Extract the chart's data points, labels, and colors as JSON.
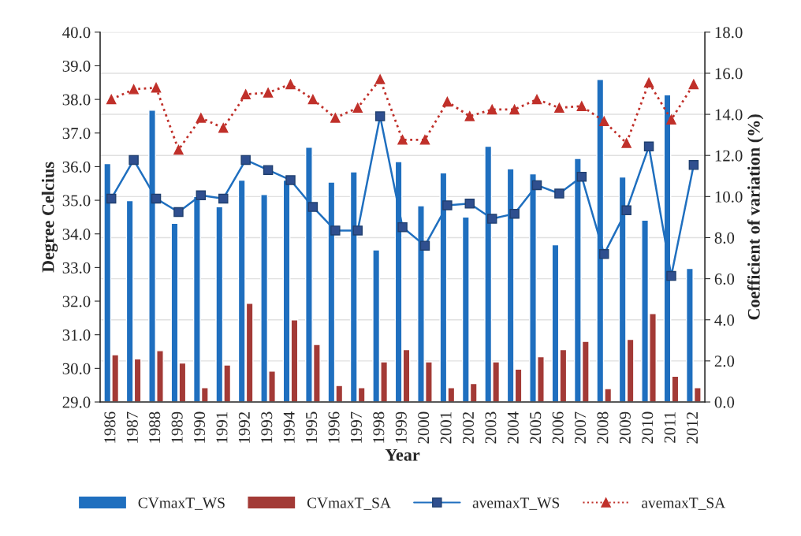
{
  "chart_data": {
    "type": "bar",
    "xlabel": "Year",
    "ylabel": "Degree Celcius",
    "y2label": "Coefficient of variation (%)",
    "categories": [
      "1986",
      "1987",
      "1988",
      "1989",
      "1990",
      "1991",
      "1992",
      "1993",
      "1994",
      "1995",
      "1996",
      "1997",
      "1998",
      "1999",
      "2000",
      "2001",
      "2002",
      "2003",
      "2004",
      "2005",
      "2006",
      "2007",
      "2008",
      "2009",
      "2010",
      "2011",
      "2012"
    ],
    "series": [
      {
        "name": "CVmaxT_WS",
        "axis": "y2",
        "color": "#1f6fbf",
        "values": [
          11.6,
          9.8,
          14.2,
          8.7,
          10.0,
          9.5,
          10.8,
          10.1,
          10.8,
          12.4,
          10.7,
          11.2,
          7.4,
          11.7,
          9.55,
          11.15,
          9.0,
          12.45,
          11.35,
          11.1,
          7.65,
          11.85,
          15.7,
          10.95,
          8.85,
          14.95,
          6.5
        ]
      },
      {
        "name": "CVmaxT_SA",
        "axis": "y2",
        "color": "#a33a36",
        "values": [
          2.3,
          2.1,
          2.5,
          1.9,
          0.7,
          1.8,
          4.8,
          1.5,
          4.0,
          2.8,
          0.8,
          0.7,
          1.95,
          2.55,
          1.95,
          0.7,
          0.9,
          1.95,
          1.6,
          2.2,
          2.55,
          2.95,
          0.65,
          3.05,
          4.3,
          1.25,
          0.7
        ]
      },
      {
        "name": "avemaxT_WS",
        "type": "line",
        "color": "#1f6fbf",
        "marker": "square",
        "line_style": "solid",
        "values": [
          35.05,
          36.2,
          35.05,
          34.65,
          35.15,
          35.05,
          36.2,
          35.9,
          35.6,
          34.8,
          34.1,
          34.1,
          37.5,
          34.2,
          33.65,
          34.85,
          34.9,
          34.45,
          34.6,
          35.45,
          35.2,
          35.7,
          33.4,
          34.7,
          36.6,
          32.75,
          36.05
        ]
      },
      {
        "name": "avemaxT_SA",
        "type": "line",
        "color": "#c0302a",
        "marker": "triangle",
        "line_style": "dotted",
        "values": [
          38.0,
          38.3,
          38.35,
          36.5,
          37.45,
          37.15,
          38.15,
          38.2,
          38.45,
          38.0,
          37.45,
          37.75,
          38.6,
          36.8,
          36.8,
          37.93,
          37.5,
          37.7,
          37.7,
          38.0,
          37.75,
          37.8,
          37.35,
          36.7,
          38.5,
          37.4,
          38.45
        ]
      }
    ],
    "ylim": [
      29,
      40
    ],
    "yticks": [
      {
        "value": 29,
        "label": "29.0"
      },
      {
        "value": 30,
        "label": "30.0"
      },
      {
        "value": 31,
        "label": "31.0"
      },
      {
        "value": 32,
        "label": "32.0"
      },
      {
        "value": 33,
        "label": "33.0"
      },
      {
        "value": 34,
        "label": "34.0"
      },
      {
        "value": 35,
        "label": "35.0"
      },
      {
        "value": 36,
        "label": "36.0"
      },
      {
        "value": 37,
        "label": "37.0"
      },
      {
        "value": 38,
        "label": "38.0"
      },
      {
        "value": 39,
        "label": "39.0"
      },
      {
        "value": 40,
        "label": "40.0"
      }
    ],
    "y2lim": [
      0,
      18
    ],
    "y2ticks": [
      {
        "value": 0,
        "label": "0.0"
      },
      {
        "value": 2,
        "label": "2.0"
      },
      {
        "value": 4,
        "label": "4.0"
      },
      {
        "value": 6,
        "label": "6.0"
      },
      {
        "value": 8,
        "label": "8.0"
      },
      {
        "value": 10,
        "label": "10.0"
      },
      {
        "value": 12,
        "label": "12.0"
      },
      {
        "value": 14,
        "label": "14.0"
      },
      {
        "value": 16,
        "label": "16.0"
      },
      {
        "value": 18,
        "label": "18.0"
      }
    ],
    "grid": "y",
    "legend": "bottom"
  }
}
